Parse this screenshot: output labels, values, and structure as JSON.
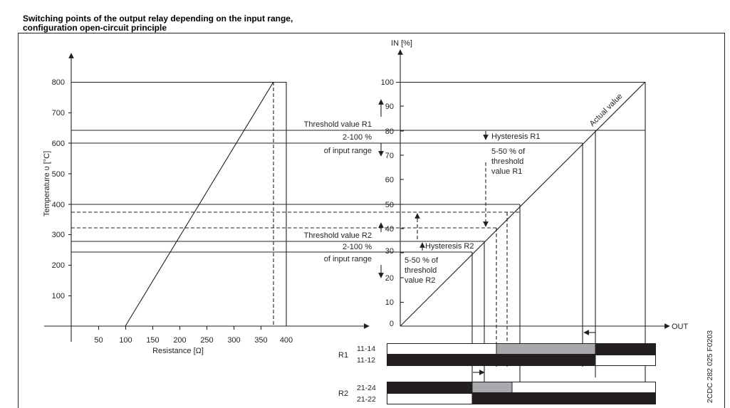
{
  "title": {
    "line1": "Switching points of the output relay depending on the input range,",
    "line2": "configuration open-circuit principle"
  },
  "left_chart": {
    "ylabel": "Temperature υ [°C]",
    "xlabel": "Resistance [Ω]",
    "y_ticks": [
      "100",
      "200",
      "300",
      "400",
      "500",
      "600",
      "700",
      "800"
    ],
    "x_ticks": [
      "50",
      "100",
      "150",
      "200",
      "250",
      "300",
      "350",
      "400"
    ]
  },
  "right_chart": {
    "ylabel": "IN [%]",
    "xlabel": "OUT",
    "y_ticks": [
      "0",
      "10",
      "20",
      "30",
      "40",
      "50",
      "60",
      "70",
      "80",
      "90",
      "100"
    ],
    "diagonal_label": "Actual value"
  },
  "annotations": {
    "threshold_r1": "Threshold value R1",
    "range_r1": "2-100 %",
    "input_range_r1": "of input range",
    "threshold_r2": "Threshold value R2",
    "range_r2": "2-100 %",
    "input_range_r2": "of input range",
    "hyst_r1": "Hysteresis R1",
    "hyst_r1_pct": "5-50 % of",
    "hyst_r1_threshold": "threshold",
    "hyst_r1_value": "value R1",
    "hyst_r2": "Hysteresis R2",
    "hyst_r2_pct": "5-50 % of",
    "hyst_r2_threshold": "threshold",
    "hyst_r2_value": "value R2"
  },
  "relays": {
    "r1": {
      "label": "R1",
      "contact_a": "11-14",
      "contact_b": "11-12"
    },
    "r2": {
      "label": "R2",
      "contact_a": "21-24",
      "contact_b": "21-22"
    }
  },
  "doc_code": "2CDC 282 025 F0203",
  "colors": {
    "line": "#231f20",
    "hysteresis_fill": "#a7a9ac",
    "on_fill": "#231f20"
  }
}
